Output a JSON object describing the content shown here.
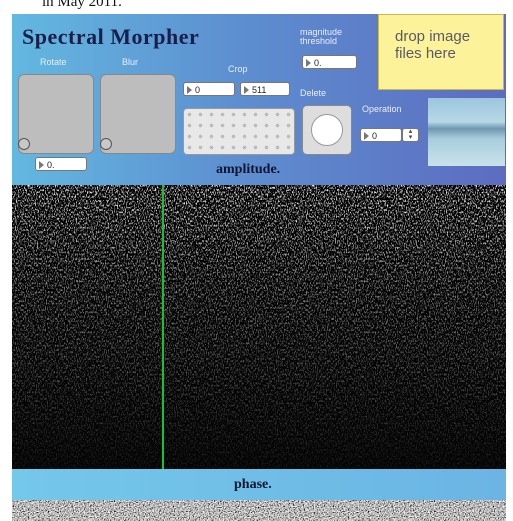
{
  "caption": "in May 2011.",
  "title": "Spectral Morpher",
  "controls": {
    "rotate": {
      "label": "Rotate",
      "value": "0."
    },
    "blur": {
      "label": "Blur"
    },
    "crop": {
      "label": "Crop",
      "start": "0",
      "end": "511"
    },
    "threshold": {
      "label_line1": "magnitude",
      "label_line2": "threshold",
      "value": "0."
    },
    "delete": {
      "label": "Delete"
    },
    "operation": {
      "label": "Operation",
      "value": "0"
    }
  },
  "dropzone": "drop image files here",
  "sections": {
    "amplitude": "amplitude.",
    "phase": "phase."
  }
}
